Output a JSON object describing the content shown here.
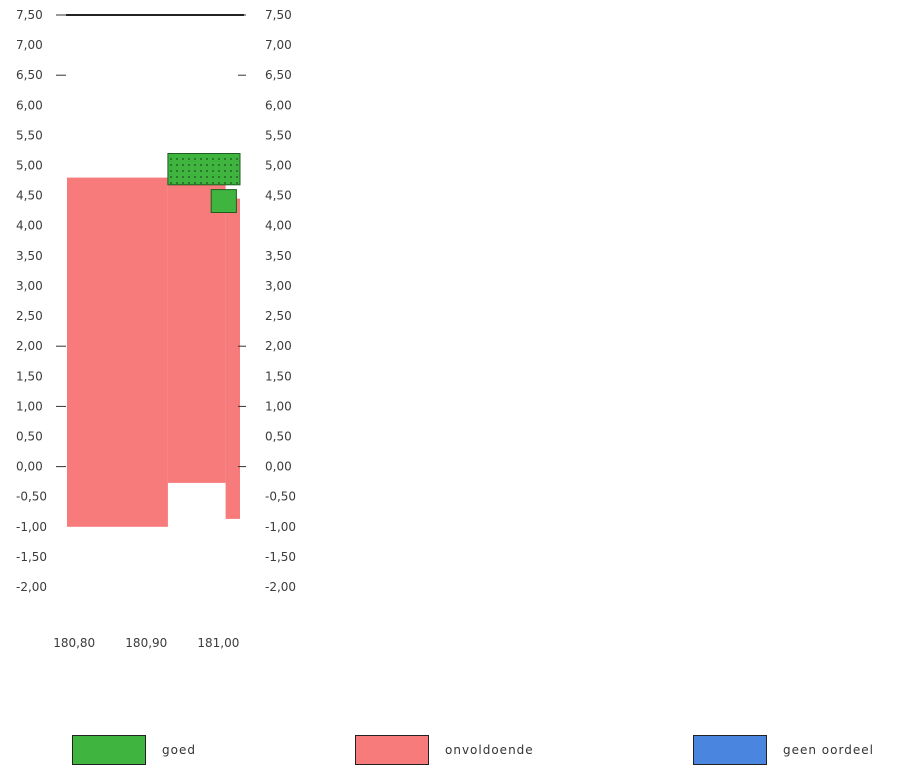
{
  "chart_data": {
    "type": "bar",
    "y_ticks_left": [
      "7,50",
      "7,00",
      "6,50",
      "6,00",
      "5,50",
      "5,00",
      "4,50",
      "4,00",
      "3,50",
      "3,00",
      "2,50",
      "2,00",
      "1,50",
      "1,00",
      "0,50",
      "0,00",
      "-0,50",
      "-1,00",
      "-1,50",
      "-2,00"
    ],
    "y_ticks_right": [
      "7,50",
      "7,00",
      "6,50",
      "6,00",
      "5,50",
      "5,00",
      "4,50",
      "4,00",
      "3,50",
      "3,00",
      "2,50",
      "2,00",
      "1,50",
      "1,00",
      "0,50",
      "0,00",
      "-0,50",
      "-1,00",
      "-1,50",
      "-2,00"
    ],
    "x_ticks": [
      "180,80",
      "180,90",
      "181,00"
    ],
    "ylim": [
      -2.0,
      7.5
    ],
    "xlim": [
      180.79,
      181.03
    ],
    "top_reference_line": 7.5,
    "blocks": [
      {
        "class": "onvoldoende",
        "x0": 180.79,
        "x1": 180.93,
        "y0": -1.0,
        "y1": 4.8
      },
      {
        "class": "onvoldoende",
        "x0": 180.93,
        "x1": 181.01,
        "y0": -0.27,
        "y1": 4.8
      },
      {
        "class": "onvoldoende",
        "x0": 181.01,
        "x1": 181.03,
        "y0": -0.87,
        "y1": 4.45
      },
      {
        "class": "goed",
        "x0": 180.93,
        "x1": 181.03,
        "y0": 4.68,
        "y1": 5.2,
        "pattern": "dotted"
      },
      {
        "class": "goed",
        "x0": 180.99,
        "x1": 181.025,
        "y0": 4.22,
        "y1": 4.6
      }
    ],
    "legend": [
      {
        "label": "goed",
        "color": "#3fb53f"
      },
      {
        "label": "onvoldoende",
        "color": "#f77b7b"
      },
      {
        "label": "geen oordeel",
        "color": "#4a86e0"
      }
    ],
    "colors": {
      "goed": "#3fb53f",
      "onvoldoende": "#f77b7b",
      "geen_oordeel": "#4a86e0"
    }
  }
}
